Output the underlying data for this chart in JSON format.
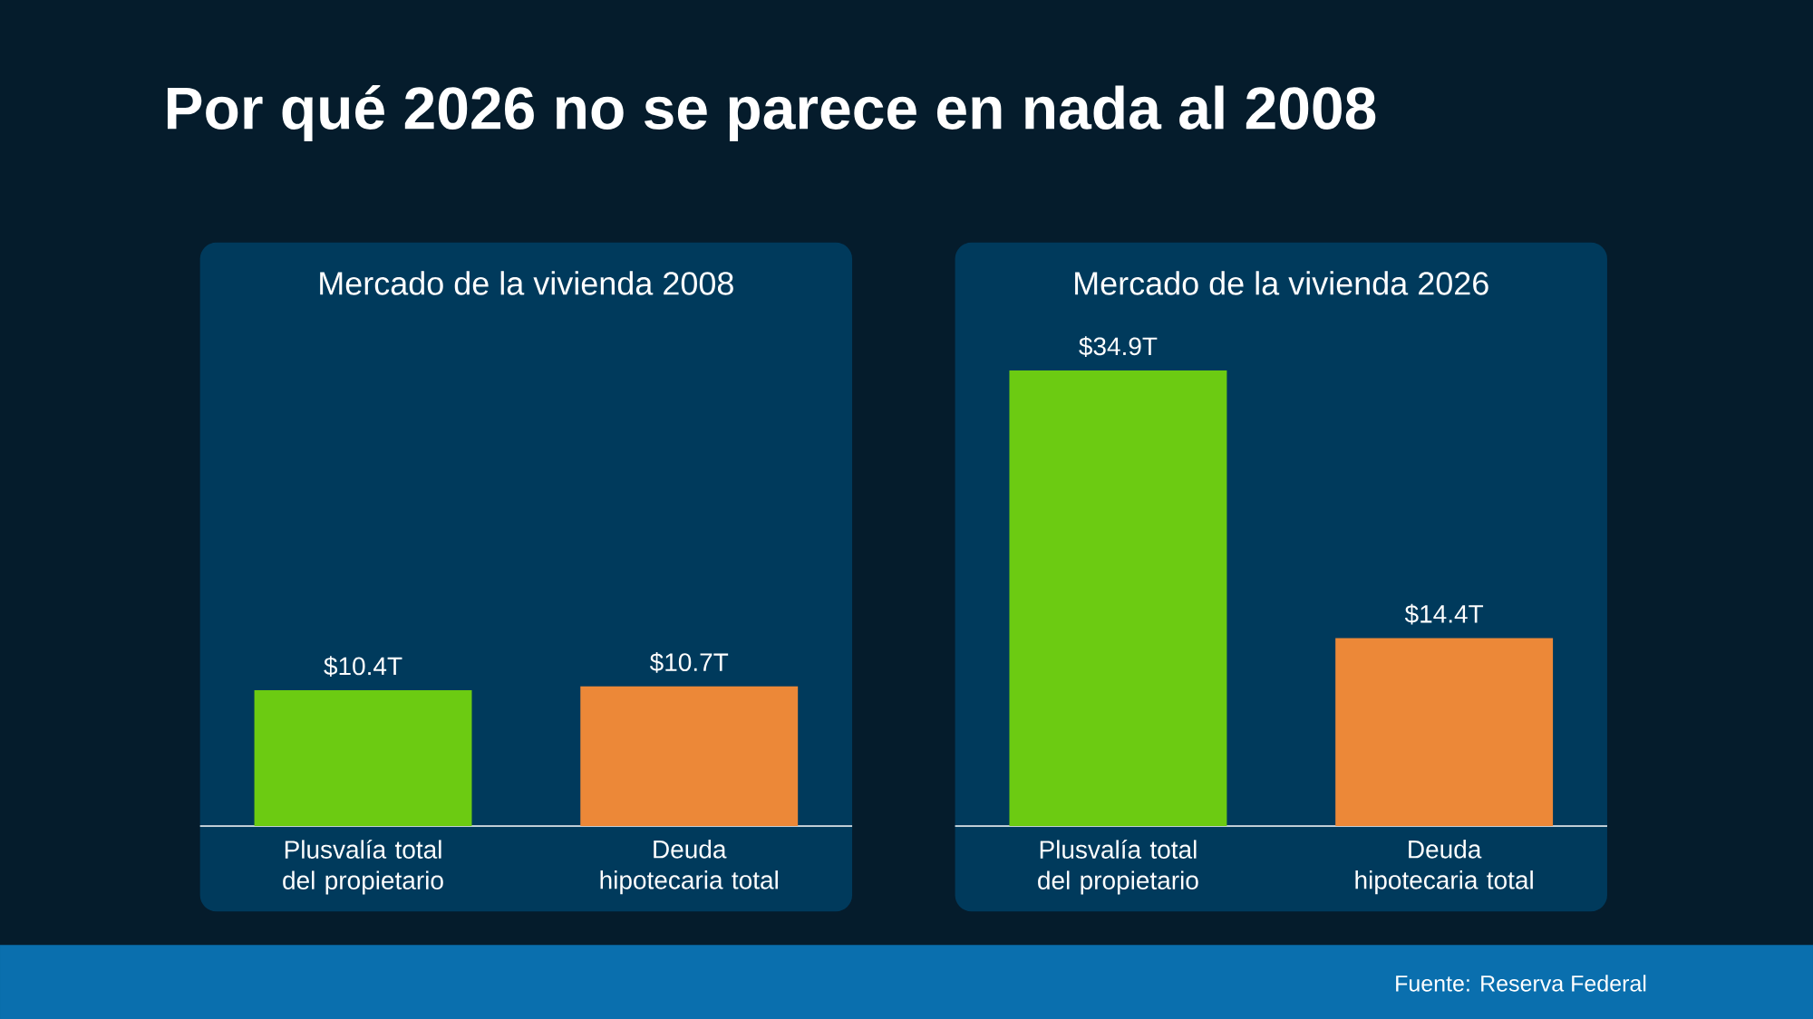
{
  "chart_data": [
    {
      "type": "other",
      "title": "Por qué 2026 no se parece en nada al 2008",
      "annotations": [
        "Fuente: Reserva Federal"
      ]
    },
    {
      "type": "bar",
      "title": "Mercado de la vivienda 2008",
      "categories": [
        "Plusvalía total del propietario",
        "Deuda hipotecaria total"
      ],
      "values": [
        10.4,
        10.7
      ],
      "colors": [
        "#6ccb12",
        "#ec8838"
      ],
      "value_labels": [
        "$10.4T",
        "$10.7T"
      ],
      "tick_labels": "x"
    },
    {
      "type": "bar",
      "title": "Mercado de la vivienda 2026",
      "categories": [
        "Plusvalía total del propietario",
        "Deuda hipotecaria total"
      ],
      "values": [
        34.9,
        14.4
      ],
      "colors": [
        "#6ccb12",
        "#ec8838"
      ],
      "value_labels": [
        "$34.9T",
        "$14.4T"
      ],
      "tick_labels": "x"
    }
  ]
}
